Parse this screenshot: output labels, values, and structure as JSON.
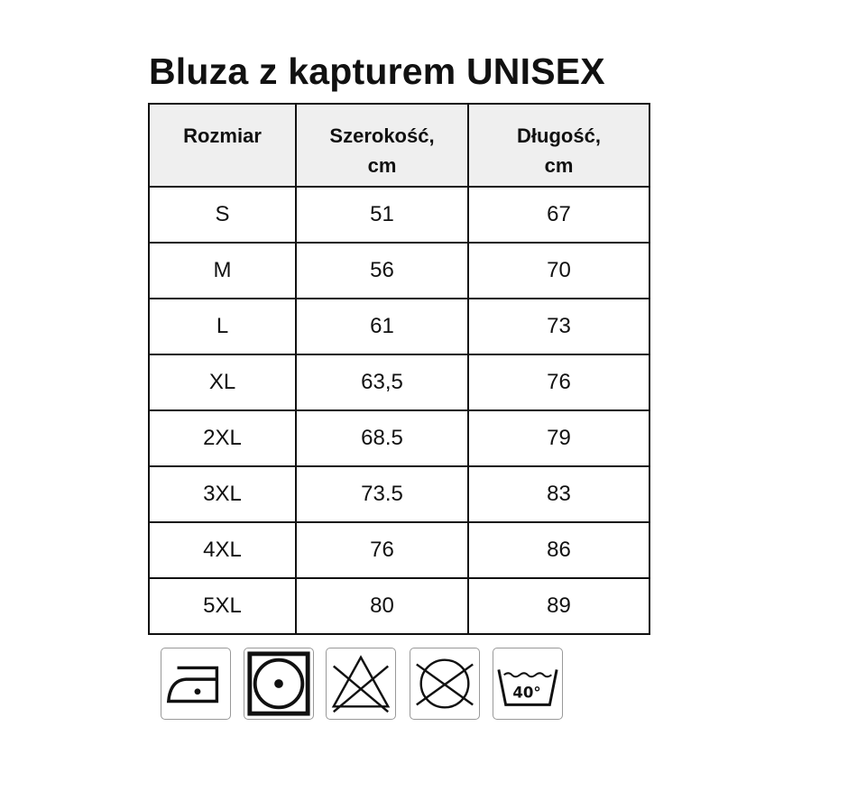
{
  "title": "Bluza z kapturem UNISEX",
  "table": {
    "headers": [
      "Rozmiar",
      "Szerokość,\ncm",
      "Długość,\ncm"
    ],
    "header_lines": [
      [
        "Rozmiar"
      ],
      [
        "Szerokość,",
        "cm"
      ],
      [
        "Długość,",
        "cm"
      ]
    ],
    "rows": [
      [
        "S",
        "51",
        "67"
      ],
      [
        "M",
        "56",
        "70"
      ],
      [
        "L",
        "61",
        "73"
      ],
      [
        "XL",
        "63,5",
        "76"
      ],
      [
        "2XL",
        "68.5",
        "79"
      ],
      [
        "3XL",
        "73.5",
        "83"
      ],
      [
        "4XL",
        "76",
        "86"
      ],
      [
        "5XL",
        "80",
        "89"
      ]
    ]
  },
  "care_icons": [
    {
      "name": "iron-low-temperature-icon"
    },
    {
      "name": "tumble-dry-low-icon"
    },
    {
      "name": "do-not-bleach-icon"
    },
    {
      "name": "do-not-dry-clean-icon"
    },
    {
      "name": "wash-40-icon",
      "label": "40°"
    }
  ]
}
